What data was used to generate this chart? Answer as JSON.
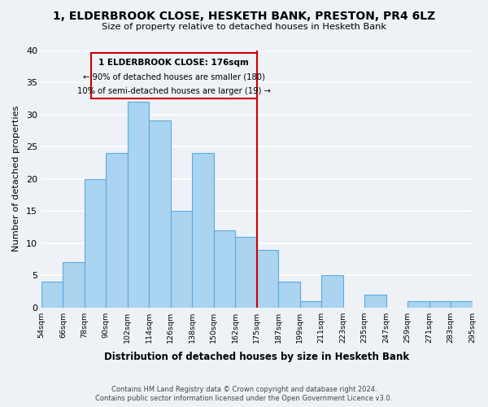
{
  "title": "1, ELDERBROOK CLOSE, HESKETH BANK, PRESTON, PR4 6LZ",
  "subtitle": "Size of property relative to detached houses in Hesketh Bank",
  "xlabel": "Distribution of detached houses by size in Hesketh Bank",
  "ylabel": "Number of detached properties",
  "bin_labels": [
    "54sqm",
    "66sqm",
    "78sqm",
    "90sqm",
    "102sqm",
    "114sqm",
    "126sqm",
    "138sqm",
    "150sqm",
    "162sqm",
    "175sqm",
    "187sqm",
    "199sqm",
    "211sqm",
    "223sqm",
    "235sqm",
    "247sqm",
    "259sqm",
    "271sqm",
    "283sqm",
    "295sqm"
  ],
  "bar_values": [
    4,
    7,
    20,
    24,
    32,
    29,
    15,
    24,
    12,
    11,
    9,
    4,
    1,
    5,
    0,
    2,
    0,
    1,
    1,
    1
  ],
  "bar_color": "#aad4f0",
  "bar_edge_color": "#5aaae0",
  "highlight_line_color": "#cc0000",
  "ylim": [
    0,
    40
  ],
  "yticks": [
    0,
    5,
    10,
    15,
    20,
    25,
    30,
    35,
    40
  ],
  "annotation_text_line1": "1 ELDERBROOK CLOSE: 176sqm",
  "annotation_text_line2": "← 90% of detached houses are smaller (180)",
  "annotation_text_line3": "10% of semi-detached houses are larger (19) →",
  "footer_line1": "Contains HM Land Registry data © Crown copyright and database right 2024.",
  "footer_line2": "Contains public sector information licensed under the Open Government Licence v3.0.",
  "background_color": "#eef2f7",
  "grid_color": "#ffffff"
}
